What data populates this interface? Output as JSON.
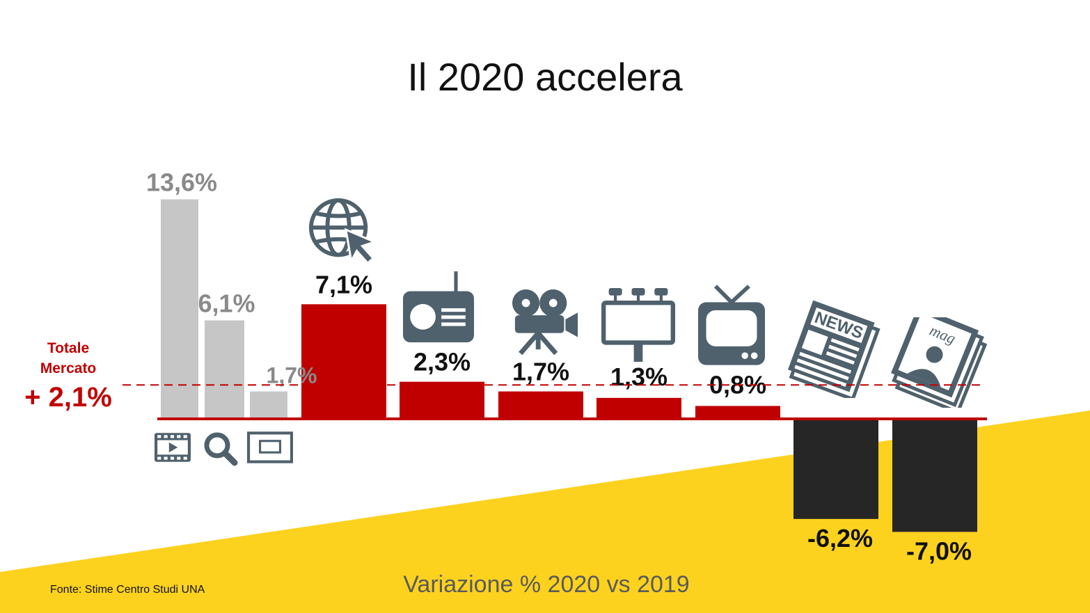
{
  "page": {
    "title": "Il 2020 accelera",
    "subtitle": "Variazione % 2020 vs 2019",
    "source": "Fonte: Stime Centro Studi UNA"
  },
  "colors": {
    "digital_sub": "#c6c6c6",
    "positive": "#c00000",
    "negative": "#262626",
    "icon": "#4f616c",
    "total": "#c00000",
    "band": "#fcd21f",
    "sub_label": "#8a8a8a"
  },
  "total_market": {
    "line1": "Totale",
    "line2": "Mercato",
    "value_label": "+ 2,1%",
    "value": 2.1
  },
  "chart_data": {
    "type": "bar",
    "title": "Il 2020 accelera",
    "xlabel": "Variazione % 2020 vs 2019",
    "ylabel": "",
    "ylim": [
      -8,
      14
    ],
    "grid": false,
    "reference_line": 2.1,
    "categories": [
      "video-icon",
      "search-icon",
      "display-icon",
      "internet-icon",
      "radio-icon",
      "cinema-icon",
      "outdoor-icon",
      "tv-icon",
      "newspaper-icon",
      "magazine-icon"
    ],
    "digital_breakdown": [
      {
        "icon": "video-icon",
        "value": 13.6,
        "label": "13,6%"
      },
      {
        "icon": "search-icon",
        "value": 6.1,
        "label": "6,1%"
      },
      {
        "icon": "display-icon",
        "value": 1.7,
        "label": "1,7%"
      }
    ],
    "media": [
      {
        "icon": "internet-icon",
        "value": 7.1,
        "label": "7,1%"
      },
      {
        "icon": "radio-icon",
        "value": 2.3,
        "label": "2,3%"
      },
      {
        "icon": "cinema-icon",
        "value": 1.7,
        "label": "1,7%"
      },
      {
        "icon": "outdoor-icon",
        "value": 1.3,
        "label": "1,3%"
      },
      {
        "icon": "tv-icon",
        "value": 0.8,
        "label": "0,8%"
      },
      {
        "icon": "newspaper-icon",
        "value": -6.2,
        "label": "-6,2%"
      },
      {
        "icon": "magazine-icon",
        "value": -7.0,
        "label": "-7,0%"
      }
    ]
  }
}
